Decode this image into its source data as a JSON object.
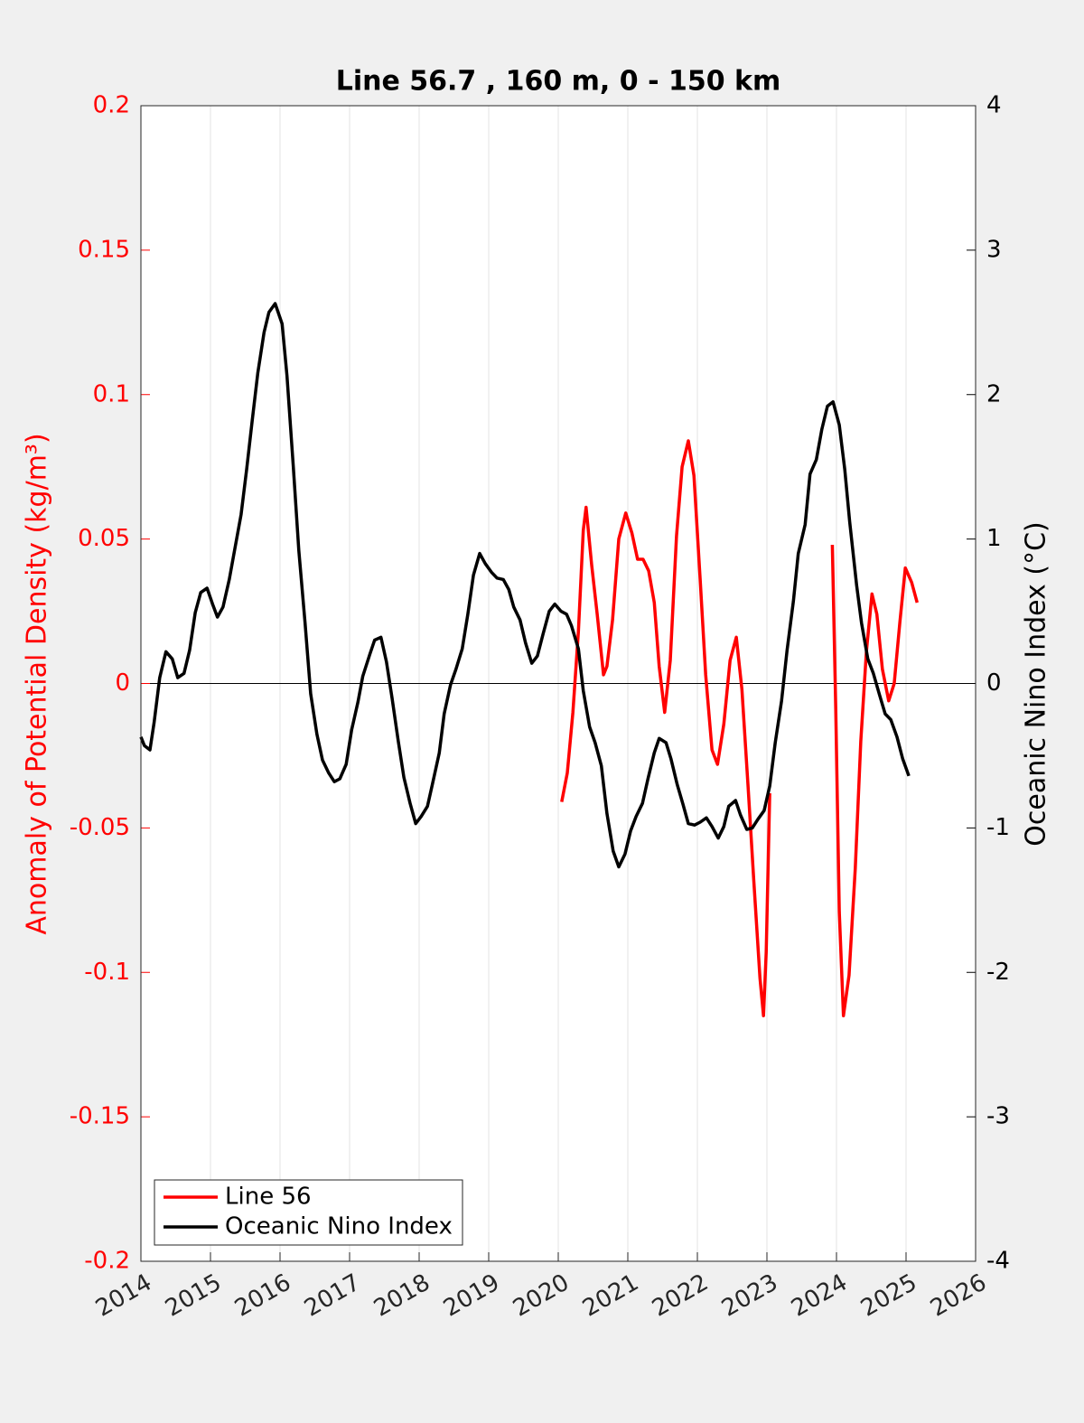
{
  "chart_data": {
    "type": "line",
    "title": "Line 56.7 , 160 m, 0 - 150 km",
    "ylabel": "Anomaly of Potential Density (kg/m³)",
    "y2label": "Oceanic Nino Index (°C)",
    "xlim": [
      2014,
      2026
    ],
    "xticks": [
      2014,
      2015,
      2016,
      2017,
      2018,
      2019,
      2020,
      2021,
      2022,
      2023,
      2024,
      2025,
      2026
    ],
    "ylim": [
      -0.2,
      0.2
    ],
    "yticks": [
      -0.2,
      -0.15,
      -0.1,
      -0.05,
      0,
      0.05,
      0.1,
      0.15,
      0.2
    ],
    "y2lim": [
      -4,
      4
    ],
    "y2ticks": [
      -4,
      -3,
      -2,
      -1,
      0,
      1,
      2,
      3,
      4
    ],
    "ycolor": "#ff0000",
    "y2color": "#000000",
    "grid": true,
    "legend": "lower left",
    "series": [
      {
        "name": "Line 56",
        "color": "#ff0000",
        "x": [
          2020.05,
          2020.13,
          2020.21,
          2020.29,
          2020.36,
          2020.4,
          2020.48,
          2020.56,
          2020.65,
          2020.7,
          2020.78,
          2020.87,
          2020.97,
          2021.06,
          2021.14,
          2021.22,
          2021.3,
          2021.38,
          2021.45,
          2021.53,
          2021.61,
          2021.7,
          2021.78,
          2021.87,
          2021.95,
          2022.04,
          2022.12,
          2022.21,
          2022.29,
          2022.38,
          2022.47,
          2022.56,
          2022.64,
          2022.73,
          2022.81,
          2022.9,
          2022.95,
          2022.99,
          2023.04,
          null,
          2023.94,
          2023.99,
          2024.04,
          2024.1,
          2024.18,
          2024.27,
          2024.35,
          2024.43,
          2024.51,
          2024.58,
          2024.66,
          2024.75,
          2024.83,
          2024.91,
          2024.99,
          2025.08,
          2025.16
        ],
        "values": [
          -0.041,
          -0.031,
          -0.01,
          0.018,
          0.053,
          0.061,
          0.041,
          0.024,
          0.003,
          0.006,
          0.022,
          0.05,
          0.059,
          0.052,
          0.043,
          0.043,
          0.039,
          0.028,
          0.006,
          -0.01,
          0.008,
          0.051,
          0.075,
          0.084,
          0.072,
          0.036,
          0.003,
          -0.023,
          -0.028,
          -0.014,
          0.008,
          0.016,
          -0.002,
          -0.036,
          -0.068,
          -0.102,
          -0.115,
          -0.093,
          -0.038,
          null,
          0.048,
          -0.009,
          -0.079,
          -0.115,
          -0.101,
          -0.064,
          -0.02,
          0.011,
          0.031,
          0.024,
          0.005,
          -0.006,
          0.0,
          0.021,
          0.04,
          0.035,
          0.028
        ]
      },
      {
        "name": "Oceanic Nino Index",
        "color": "#000000",
        "axis": "y2",
        "x": [
          2014.0,
          2014.05,
          2014.13,
          2014.19,
          2014.27,
          2014.36,
          2014.45,
          2014.53,
          2014.62,
          2014.7,
          2014.78,
          2014.86,
          2014.95,
          2015.03,
          2015.1,
          2015.18,
          2015.27,
          2015.35,
          2015.44,
          2015.52,
          2015.6,
          2015.68,
          2015.77,
          2015.84,
          2015.93,
          2016.03,
          2016.1,
          2016.19,
          2016.27,
          2016.36,
          2016.44,
          2016.53,
          2016.61,
          2016.7,
          2016.78,
          2016.86,
          2016.95,
          2017.03,
          2017.12,
          2017.19,
          2017.29,
          2017.36,
          2017.45,
          2017.53,
          2017.61,
          2017.7,
          2017.78,
          2017.87,
          2017.95,
          2018.03,
          2018.12,
          2018.19,
          2018.29,
          2018.36,
          2018.45,
          2018.53,
          2018.62,
          2018.7,
          2018.78,
          2018.87,
          2018.95,
          2019.04,
          2019.12,
          2019.21,
          2019.29,
          2019.36,
          2019.45,
          2019.53,
          2019.62,
          2019.7,
          2019.78,
          2019.87,
          2019.95,
          2020.04,
          2020.12,
          2020.19,
          2020.29,
          2020.36,
          2020.45,
          2020.53,
          2020.62,
          2020.7,
          2020.79,
          2020.87,
          2020.96,
          2021.04,
          2021.12,
          2021.21,
          2021.29,
          2021.38,
          2021.45,
          2021.55,
          2021.62,
          2021.71,
          2021.79,
          2021.87,
          2021.96,
          2022.04,
          2022.13,
          2022.21,
          2022.3,
          2022.38,
          2022.45,
          2022.55,
          2022.62,
          2022.71,
          2022.79,
          2022.87,
          2022.96,
          2023.04,
          2023.12,
          2023.21,
          2023.29,
          2023.38,
          2023.45,
          2023.55,
          2023.62,
          2023.71,
          2023.79,
          2023.87,
          2023.95,
          2024.04,
          2024.12,
          2024.19,
          2024.29,
          2024.36,
          2024.45,
          2024.53,
          2024.62,
          2024.7,
          2024.78,
          2024.87,
          2024.95,
          2025.04
        ],
        "values": [
          -0.37,
          -0.43,
          -0.46,
          -0.27,
          0.04,
          0.22,
          0.17,
          0.04,
          0.07,
          0.23,
          0.49,
          0.63,
          0.66,
          0.55,
          0.46,
          0.53,
          0.72,
          0.93,
          1.17,
          1.48,
          1.82,
          2.15,
          2.43,
          2.57,
          2.63,
          2.49,
          2.13,
          1.51,
          0.92,
          0.42,
          -0.07,
          -0.35,
          -0.53,
          -0.62,
          -0.68,
          -0.66,
          -0.56,
          -0.32,
          -0.13,
          0.05,
          0.2,
          0.3,
          0.32,
          0.15,
          -0.1,
          -0.4,
          -0.65,
          -0.83,
          -0.97,
          -0.92,
          -0.85,
          -0.7,
          -0.48,
          -0.21,
          -0.01,
          0.1,
          0.24,
          0.48,
          0.75,
          0.9,
          0.83,
          0.77,
          0.73,
          0.72,
          0.65,
          0.53,
          0.44,
          0.28,
          0.14,
          0.19,
          0.34,
          0.5,
          0.55,
          0.5,
          0.48,
          0.4,
          0.24,
          -0.05,
          -0.3,
          -0.41,
          -0.57,
          -0.9,
          -1.16,
          -1.27,
          -1.18,
          -1.02,
          -0.92,
          -0.83,
          -0.66,
          -0.48,
          -0.38,
          -0.41,
          -0.52,
          -0.7,
          -0.83,
          -0.97,
          -0.98,
          -0.96,
          -0.93,
          -0.99,
          -1.07,
          -0.99,
          -0.85,
          -0.81,
          -0.91,
          -1.01,
          -1.0,
          -0.94,
          -0.88,
          -0.71,
          -0.41,
          -0.12,
          0.23,
          0.57,
          0.9,
          1.1,
          1.45,
          1.55,
          1.76,
          1.92,
          1.95,
          1.79,
          1.48,
          1.12,
          0.68,
          0.42,
          0.17,
          0.07,
          -0.08,
          -0.21,
          -0.25,
          -0.37,
          -0.52,
          -0.64
        ]
      }
    ]
  }
}
